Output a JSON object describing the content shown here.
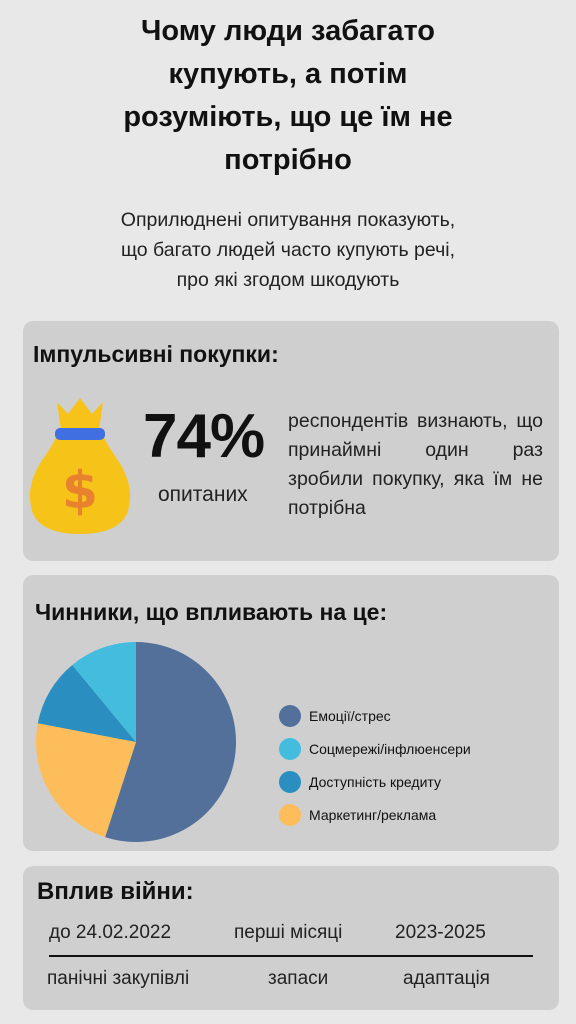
{
  "header": {
    "title_lines": [
      "Чому люди забагато",
      "купують, а потім",
      "розуміють, що це їм не",
      "потрібно"
    ],
    "subtitle_lines": [
      "Оприлюднені опитування показують,",
      "що багато людей часто купують речі,",
      "про які згодом шкодують"
    ]
  },
  "impulse": {
    "title": "Імпульсивні покупки:",
    "value": "74%",
    "value_label": "опитаних",
    "description": "респондентів визнають, що принаймні один раз зробили покупку, яка їм не потрібна",
    "icon": "money-bag-icon"
  },
  "factors": {
    "title": "Чинники, що впливають на це:",
    "legend": [
      {
        "label": "Емоції/стрес",
        "color": "#52709a"
      },
      {
        "label": "Соцмережі/інфлюенсери",
        "color": "#44bcde"
      },
      {
        "label": "Доступність кредиту",
        "color": "#2a8fc0"
      },
      {
        "label": "Маркетинг/реклама",
        "color": "#fdbd5a"
      }
    ]
  },
  "chart_data": {
    "type": "pie",
    "categories": [
      "Емоції/стрес",
      "Маркетинг/реклама",
      "Доступність кредиту",
      "Соцмережі/інфлюенсери"
    ],
    "values": [
      55,
      23,
      11,
      11
    ],
    "colors": [
      "#52709a",
      "#fdbd5a",
      "#2a8fc0",
      "#44bcde"
    ]
  },
  "war": {
    "title": "Вплив війни:",
    "periods": [
      "до 24.02.2022",
      "перші місяці",
      "2023-2025"
    ],
    "phases": [
      "панічні закупівлі",
      "запаси",
      "адаптація"
    ]
  }
}
